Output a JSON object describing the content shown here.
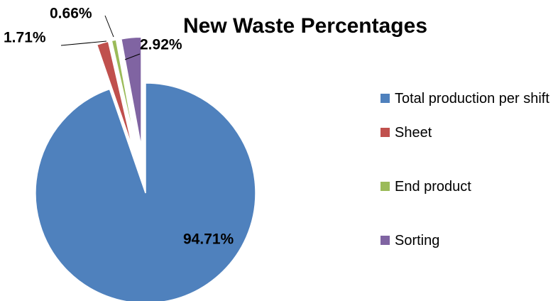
{
  "chart_data": {
    "type": "pie",
    "title": "New Waste Percentages",
    "categories": [
      "Total production per shift",
      "Sheet",
      "End product",
      "Sorting"
    ],
    "values": [
      94.71,
      1.71,
      0.66,
      2.92
    ],
    "value_labels": [
      "94.71%",
      "1.71%",
      "0.66%",
      "2.92%"
    ],
    "colors": [
      "#4f81bd",
      "#c0504d",
      "#9bbb59",
      "#8064a2"
    ],
    "legend": "right"
  }
}
